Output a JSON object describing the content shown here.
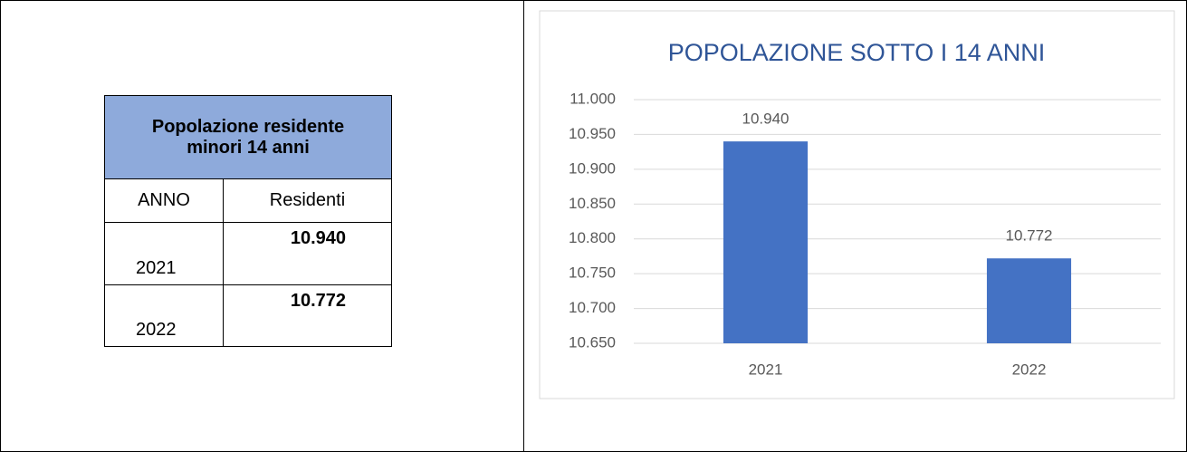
{
  "table": {
    "title": "Popolazione residente minori 14 anni",
    "header": [
      "ANNO",
      "Residenti"
    ],
    "rows": [
      [
        "2021",
        "10.940"
      ],
      [
        "2022",
        "10.772"
      ]
    ]
  },
  "chart_data": {
    "type": "bar",
    "title": "POPOLAZIONE SOTTO I 14 ANNI",
    "categories": [
      "2021",
      "2022"
    ],
    "values": [
      10940,
      10772
    ],
    "value_labels": [
      "10.940",
      "10.772"
    ],
    "color": "#4472c4",
    "ylim": [
      10650,
      11000
    ],
    "yticks": [
      {
        "value": 10650,
        "label": "10.650"
      },
      {
        "value": 10700,
        "label": "10.700"
      },
      {
        "value": 10750,
        "label": "10.750"
      },
      {
        "value": 10800,
        "label": "10.800"
      },
      {
        "value": 10850,
        "label": "10.850"
      },
      {
        "value": 10900,
        "label": "10.900"
      },
      {
        "value": 10950,
        "label": "10.950"
      },
      {
        "value": 11000,
        "label": "11.000"
      }
    ],
    "grid": true
  }
}
